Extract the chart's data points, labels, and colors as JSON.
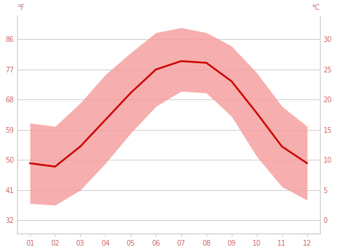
{
  "months": [
    1,
    2,
    3,
    4,
    5,
    6,
    7,
    8,
    9,
    10,
    11,
    12
  ],
  "month_labels": [
    "01",
    "02",
    "03",
    "04",
    "05",
    "06",
    "07",
    "08",
    "09",
    "10",
    "11",
    "12"
  ],
  "avg_temp_f": [
    49.0,
    48.0,
    54.0,
    62.0,
    70.0,
    77.0,
    79.5,
    79.0,
    73.5,
    64.0,
    54.0,
    49.0
  ],
  "min_temp_f": [
    37.0,
    36.5,
    41.0,
    49.0,
    58.0,
    66.0,
    70.5,
    70.0,
    63.0,
    51.0,
    42.0,
    38.0
  ],
  "max_temp_f": [
    61.0,
    60.0,
    67.0,
    75.5,
    82.0,
    88.0,
    89.5,
    88.0,
    84.0,
    76.0,
    66.0,
    60.0
  ],
  "yticks_f": [
    32,
    41,
    50,
    59,
    68,
    77,
    86
  ],
  "yticks_c": [
    0,
    5,
    10,
    15,
    20,
    25,
    30
  ],
  "ylim_f": [
    28,
    93
  ],
  "xlim": [
    0.5,
    12.5
  ],
  "line_color": "#cc0000",
  "band_color": "#f5a0a0",
  "band_alpha": 0.85,
  "grid_color": "#cccccc",
  "tick_color": "#cc6666",
  "axis_color": "#cccccc",
  "background_color": "#ffffff",
  "fig_width": 4.74,
  "fig_height": 3.55,
  "dpi": 100
}
